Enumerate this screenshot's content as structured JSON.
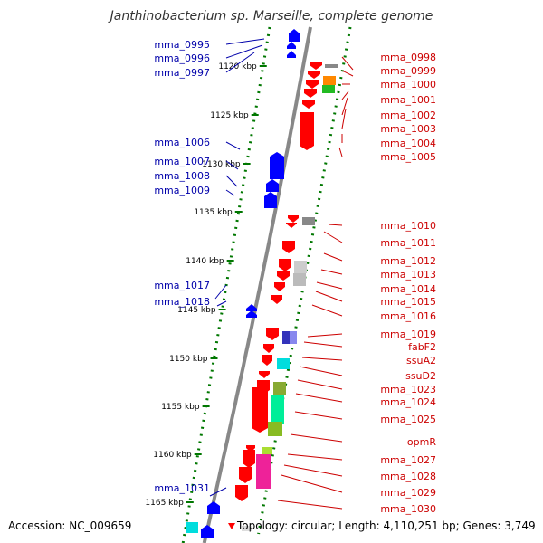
{
  "title": "Janthinobacterium sp. Marseille, complete genome",
  "footer": {
    "accession": "Accession: NC_009659",
    "topology": "Topology: circular; Length: 4,110,251 bp; Genes: 3,749"
  },
  "colors": {
    "forward_gene": "#0000ff",
    "reverse_gene": "#ff0000",
    "label_blue": "#0000aa",
    "label_red": "#cc0000",
    "tick": "#007700",
    "backbone": "#888888"
  },
  "scale_ticks": [
    "1120 kbp",
    "1125 kbp",
    "1130 kbp",
    "1135 kbp",
    "1140 kbp",
    "1145 kbp",
    "1150 kbp",
    "1155 kbp",
    "1160 kbp",
    "1165 kbp"
  ],
  "genes_left": [
    "mma_0995",
    "mma_0996",
    "mma_0997",
    "mma_1006",
    "mma_1007",
    "mma_1008",
    "mma_1009",
    "mma_1017",
    "mma_1018",
    "mma_1031"
  ],
  "genes_right": [
    "mma_0998",
    "mma_0999",
    "mma_1000",
    "mma_1001",
    "mma_1002",
    "mma_1003",
    "mma_1004",
    "mma_1005",
    "mma_1010",
    "mma_1011",
    "mma_1012",
    "mma_1013",
    "mma_1014",
    "mma_1015",
    "mma_1016",
    "mma_1019",
    "fabF2",
    "ssuA2",
    "ssuD2",
    "mma_1023",
    "mma_1024",
    "mma_1025",
    "opmR",
    "mma_1027",
    "mma_1028",
    "mma_1029",
    "mma_1030"
  ]
}
